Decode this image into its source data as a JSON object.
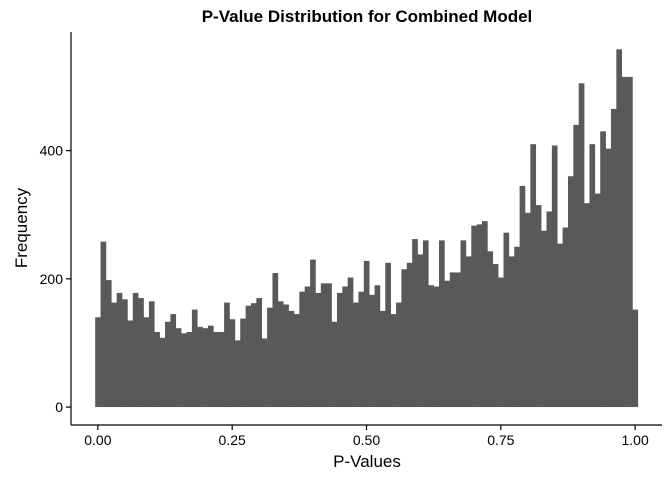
{
  "chart_data": {
    "type": "bar",
    "title": "P-Value Distribution for Combined Model",
    "xlabel": "P-Values",
    "ylabel": "Frequency",
    "x_ticks": [
      0.0,
      0.25,
      0.5,
      0.75,
      1.0
    ],
    "x_tick_labels": [
      "0.00",
      "0.25",
      "0.50",
      "0.75",
      "1.00"
    ],
    "y_ticks": [
      0,
      200,
      400
    ],
    "y_tick_labels": [
      "0",
      "200",
      "400"
    ],
    "xlim": [
      -0.05,
      1.05
    ],
    "ylim": [
      -28,
      585
    ],
    "bin_width": 0.01,
    "bin_start": -0.005,
    "grid": false,
    "values": [
      140,
      258,
      198,
      163,
      178,
      168,
      135,
      178,
      170,
      140,
      165,
      117,
      108,
      133,
      145,
      123,
      115,
      117,
      152,
      125,
      123,
      127,
      117,
      117,
      163,
      137,
      104,
      138,
      158,
      162,
      170,
      107,
      155,
      209,
      165,
      160,
      150,
      145,
      180,
      188,
      230,
      178,
      193,
      193,
      133,
      178,
      188,
      202,
      163,
      180,
      228,
      175,
      190,
      150,
      225,
      145,
      163,
      215,
      225,
      262,
      238,
      260,
      190,
      188,
      260,
      197,
      210,
      210,
      260,
      235,
      283,
      285,
      290,
      243,
      223,
      202,
      272,
      235,
      250,
      345,
      303,
      410,
      315,
      275,
      305,
      408,
      255,
      280,
      360,
      440,
      505,
      318,
      410,
      333,
      430,
      403,
      465,
      558,
      515,
      515,
      152
    ]
  }
}
